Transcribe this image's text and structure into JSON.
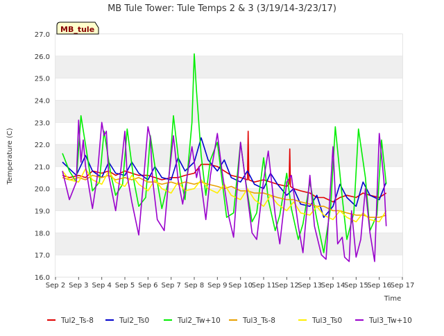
{
  "chart_data": {
    "type": "line",
    "title": "MB Tule Tower: Tule Temps 2 & 3 (3/19/14-3/23/17)",
    "xlabel": "Time",
    "ylabel": "Temperature (C)",
    "station_badge": "MB_tule",
    "ylim": [
      16.0,
      27.0
    ],
    "xlim": [
      2,
      17
    ],
    "yticks": [
      16,
      17,
      18,
      19,
      20,
      21,
      22,
      23,
      24,
      25,
      26,
      27
    ],
    "ytick_labels": [
      "16.0",
      "17.0",
      "18.0",
      "19.0",
      "20.0",
      "21.0",
      "22.0",
      "23.0",
      "24.0",
      "25.0",
      "26.0",
      "27.0"
    ],
    "xticks": [
      2,
      3,
      4,
      5,
      6,
      7,
      8,
      9,
      10,
      11,
      12,
      13,
      14,
      15,
      16,
      17
    ],
    "xtick_labels": [
      "Sep 2",
      "Sep 3",
      "Sep 4",
      "Sep 5",
      "Sep 6",
      "Sep 7",
      "Sep 8",
      "Sep 9",
      "Sep 10",
      "Sep 11",
      "Sep 12",
      "Sep 13",
      "Sep 14",
      "Sep 15",
      "Sep 16",
      "Sep 17"
    ],
    "grid": "horizontal-bands",
    "legend_position": "bottom",
    "series": [
      {
        "name": "Tul2_Ts-8",
        "color": "#e00000",
        "x": [
          2.3,
          2.6,
          3.0,
          3.3,
          3.6,
          4.0,
          4.3,
          4.6,
          5.0,
          5.3,
          5.6,
          6.0,
          6.3,
          6.6,
          7.0,
          7.3,
          7.6,
          8.0,
          8.3,
          8.6,
          9.0,
          9.3,
          9.6,
          10.0,
          10.3,
          10.33,
          10.36,
          10.6,
          11.0,
          11.3,
          11.6,
          12.0,
          12.1,
          12.13,
          12.16,
          12.3,
          12.6,
          13.0,
          13.3,
          13.6,
          14.0,
          14.3,
          14.6,
          15.0,
          15.3,
          15.6,
          16.0,
          16.3
        ],
        "y": [
          20.6,
          20.5,
          20.6,
          20.5,
          20.8,
          20.7,
          20.8,
          20.6,
          20.8,
          20.7,
          20.6,
          20.6,
          20.5,
          20.4,
          20.5,
          20.5,
          20.6,
          20.7,
          21.1,
          21.1,
          21.0,
          20.8,
          20.6,
          20.5,
          20.4,
          22.6,
          20.4,
          20.3,
          20.4,
          20.3,
          20.2,
          20.1,
          20.2,
          21.8,
          20.1,
          20.0,
          19.9,
          19.8,
          19.6,
          19.6,
          19.4,
          19.6,
          19.7,
          19.6,
          19.8,
          19.7,
          19.6,
          19.8
        ]
      },
      {
        "name": "Tul2_Ts0",
        "color": "#0000cc",
        "x": [
          2.3,
          2.6,
          2.9,
          3.3,
          3.6,
          4.0,
          4.3,
          4.6,
          5.0,
          5.3,
          5.6,
          6.0,
          6.3,
          6.6,
          7.0,
          7.3,
          7.6,
          8.0,
          8.3,
          8.6,
          9.0,
          9.3,
          9.6,
          10.0,
          10.3,
          10.6,
          11.0,
          11.3,
          11.6,
          12.0,
          12.3,
          12.6,
          13.0,
          13.3,
          13.6,
          14.0,
          14.3,
          14.6,
          15.0,
          15.3,
          15.6,
          16.0,
          16.3
        ],
        "y": [
          21.2,
          20.9,
          20.6,
          21.5,
          20.8,
          20.5,
          21.2,
          20.7,
          20.6,
          21.2,
          20.7,
          20.4,
          21.0,
          20.5,
          20.4,
          21.4,
          20.8,
          21.2,
          22.3,
          21.3,
          20.8,
          21.3,
          20.5,
          20.3,
          20.8,
          20.2,
          20.0,
          20.7,
          20.2,
          19.7,
          20.0,
          19.3,
          19.2,
          19.7,
          18.7,
          19.2,
          20.2,
          19.6,
          19.2,
          20.3,
          19.7,
          19.5,
          20.3
        ]
      },
      {
        "name": "Tul2_Tw+10",
        "color": "#00ee00",
        "x": [
          2.3,
          2.6,
          2.9,
          3.1,
          3.4,
          3.6,
          3.9,
          4.1,
          4.4,
          4.6,
          4.9,
          5.1,
          5.4,
          5.6,
          5.9,
          6.1,
          6.4,
          6.6,
          6.9,
          7.1,
          7.4,
          7.6,
          7.9,
          8.0,
          8.1,
          8.3,
          8.5,
          8.7,
          9.0,
          9.2,
          9.4,
          9.7,
          10.0,
          10.2,
          10.5,
          10.7,
          11.0,
          11.2,
          11.5,
          11.7,
          12.0,
          12.2,
          12.5,
          12.7,
          13.0,
          13.3,
          13.6,
          13.9,
          14.1,
          14.4,
          14.6,
          14.9,
          15.1,
          15.4,
          15.6,
          15.9,
          16.1,
          16.3
        ],
        "y": [
          21.6,
          20.8,
          20.3,
          23.3,
          21.3,
          19.9,
          20.3,
          22.6,
          20.6,
          19.7,
          20.2,
          22.7,
          20.3,
          19.2,
          19.6,
          22.4,
          20.3,
          19.1,
          20.4,
          23.3,
          20.6,
          19.5,
          23.0,
          26.1,
          24.4,
          21.5,
          19.7,
          21.3,
          22.1,
          20.4,
          18.7,
          18.9,
          22.1,
          20.5,
          18.5,
          18.9,
          21.4,
          19.5,
          18.1,
          18.8,
          20.7,
          19.1,
          17.7,
          18.4,
          20.3,
          18.6,
          17.1,
          19.2,
          22.8,
          19.6,
          17.7,
          18.9,
          22.7,
          20.5,
          18.1,
          18.8,
          22.2,
          20.2
        ]
      },
      {
        "name": "Tul3_Ts-8",
        "color": "#e8a000",
        "x": [
          2.3,
          2.6,
          3.0,
          3.3,
          3.6,
          4.0,
          4.3,
          4.6,
          5.0,
          5.3,
          5.6,
          6.0,
          6.3,
          6.6,
          7.0,
          7.3,
          7.6,
          8.0,
          8.3,
          8.6,
          9.0,
          9.3,
          9.6,
          10.0,
          10.3,
          10.6,
          11.0,
          11.3,
          11.6,
          12.0,
          12.3,
          12.6,
          13.0,
          13.3,
          13.6,
          14.0,
          14.3,
          14.6,
          15.0,
          15.3,
          15.6,
          16.0,
          16.3
        ],
        "y": [
          20.5,
          20.4,
          20.5,
          20.4,
          20.6,
          20.5,
          20.6,
          20.4,
          20.5,
          20.4,
          20.5,
          20.3,
          20.3,
          20.2,
          20.3,
          20.2,
          20.3,
          20.2,
          20.3,
          20.2,
          20.1,
          20.0,
          20.1,
          19.9,
          19.9,
          19.8,
          19.8,
          19.7,
          19.6,
          19.5,
          19.5,
          19.4,
          19.3,
          19.2,
          19.2,
          19.0,
          19.0,
          18.9,
          18.8,
          18.8,
          18.7,
          18.7,
          18.8
        ]
      },
      {
        "name": "Tul3_Ts0",
        "color": "#ffee00",
        "x": [
          2.3,
          2.6,
          3.0,
          3.3,
          3.6,
          4.0,
          4.3,
          4.6,
          5.0,
          5.3,
          5.6,
          6.0,
          6.3,
          6.6,
          7.0,
          7.3,
          7.6,
          8.0,
          8.3,
          8.6,
          9.0,
          9.3,
          9.6,
          10.0,
          10.3,
          10.6,
          11.0,
          11.3,
          11.6,
          12.0,
          12.3,
          12.6,
          13.0,
          13.3,
          13.6,
          14.0,
          14.3,
          14.6,
          15.0,
          15.3,
          15.6,
          16.0,
          16.3
        ],
        "y": [
          20.8,
          20.4,
          20.3,
          20.9,
          20.4,
          20.2,
          20.8,
          20.3,
          20.1,
          20.6,
          20.2,
          19.9,
          20.4,
          20.0,
          19.8,
          20.3,
          19.9,
          20.0,
          20.4,
          20.0,
          19.8,
          20.2,
          19.7,
          19.5,
          20.0,
          19.5,
          19.2,
          19.7,
          19.3,
          19.0,
          19.4,
          18.9,
          18.8,
          19.2,
          18.8,
          18.6,
          19.0,
          18.7,
          18.5,
          18.9,
          18.6,
          18.5,
          19.0
        ]
      },
      {
        "name": "Tul3_Tw+10",
        "color": "#9900cc",
        "x": [
          2.3,
          2.6,
          2.9,
          3.0,
          3.1,
          3.2,
          3.3,
          3.6,
          3.8,
          4.0,
          4.1,
          4.2,
          4.3,
          4.6,
          4.8,
          5.0,
          5.1,
          5.3,
          5.6,
          5.8,
          6.0,
          6.1,
          6.2,
          6.4,
          6.7,
          6.9,
          7.1,
          7.3,
          7.5,
          7.7,
          7.9,
          8.1,
          8.2,
          8.5,
          8.7,
          9.0,
          9.2,
          9.5,
          9.7,
          10.0,
          10.2,
          10.5,
          10.7,
          11.0,
          11.2,
          11.5,
          11.7,
          12.0,
          12.2,
          12.5,
          12.7,
          13.0,
          13.2,
          13.5,
          13.7,
          14.0,
          14.2,
          14.4,
          14.5,
          14.7,
          14.8,
          15.0,
          15.2,
          15.4,
          15.6,
          15.8,
          16.0,
          16.2,
          16.3
        ],
        "y": [
          20.8,
          19.5,
          20.3,
          23.1,
          21.2,
          22.2,
          21.0,
          19.1,
          20.5,
          23.0,
          22.4,
          22.6,
          20.6,
          19.0,
          20.6,
          22.6,
          20.6,
          19.4,
          17.9,
          20.3,
          22.8,
          22.3,
          20.4,
          18.6,
          18.1,
          20.5,
          22.4,
          20.4,
          19.3,
          20.6,
          21.9,
          20.5,
          21.0,
          18.6,
          20.6,
          22.5,
          20.8,
          18.7,
          17.8,
          22.1,
          20.5,
          18.0,
          17.7,
          20.4,
          21.7,
          18.8,
          17.5,
          20.3,
          20.6,
          18.3,
          17.1,
          20.6,
          18.3,
          17.0,
          16.8,
          21.9,
          17.5,
          17.8,
          16.9,
          16.7,
          19.0,
          16.9,
          17.7,
          20.0,
          18.0,
          16.7,
          22.5,
          20.4,
          18.3
        ]
      }
    ]
  }
}
